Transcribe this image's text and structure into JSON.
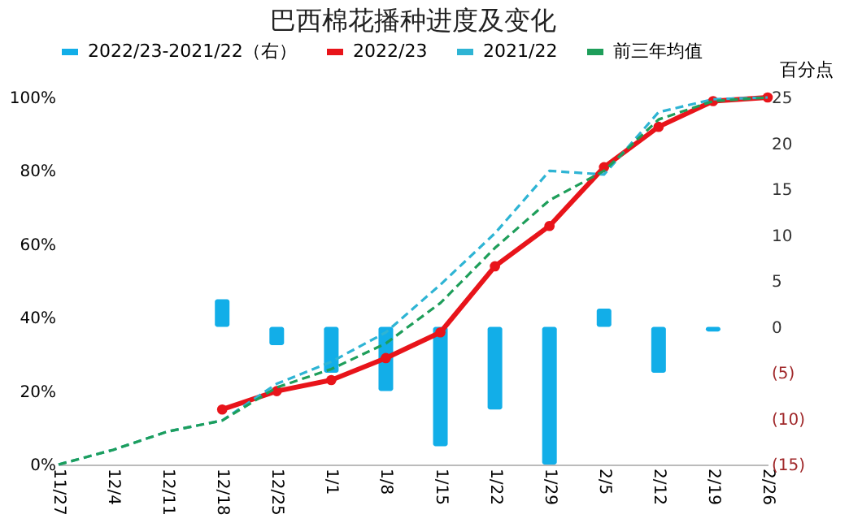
{
  "chart_data": {
    "type": "line",
    "title": "巴西棉花播种进度及变化",
    "y2label": "百分点",
    "categories": [
      "11/27",
      "12/4",
      "12/11",
      "12/18",
      "12/25",
      "1/1",
      "1/8",
      "1/15",
      "1/22",
      "1/29",
      "2/5",
      "2/12",
      "2/19",
      "2/26"
    ],
    "series": [
      {
        "name": "2022/23-2021/22（右）",
        "type": "bar",
        "axis": "y2",
        "color": "#12aee8",
        "values": [
          null,
          null,
          null,
          3,
          -2,
          -5,
          -7,
          -13,
          -9,
          -15,
          2,
          -5,
          -0.5,
          null
        ]
      },
      {
        "name": "2022/23",
        "color": "#e8141a",
        "marker": "circle",
        "line_style": "solid",
        "values": [
          null,
          null,
          null,
          15,
          20,
          23,
          29,
          36,
          54,
          65,
          81,
          92,
          99,
          100
        ]
      },
      {
        "name": "2021/22",
        "color": "#2eb4d4",
        "marker": "none",
        "line_style": "dashed",
        "values": [
          0,
          4,
          9,
          12,
          22,
          28,
          36,
          49,
          63,
          80,
          79,
          96,
          99.5,
          100
        ]
      },
      {
        "name": "前三年均值",
        "color": "#1e9e5a",
        "marker": "none",
        "line_style": "dashed",
        "values": [
          0,
          4,
          9,
          12,
          21,
          26,
          33,
          44,
          59,
          72,
          80,
          94,
          99,
          100
        ]
      }
    ],
    "ylim": [
      0,
      100
    ],
    "yticks": [
      {
        "value": 0,
        "label": "0%"
      },
      {
        "value": 20,
        "label": "20%"
      },
      {
        "value": 40,
        "label": "40%"
      },
      {
        "value": 60,
        "label": "60%"
      },
      {
        "value": 80,
        "label": "80%"
      },
      {
        "value": 100,
        "label": "100%"
      }
    ],
    "y2lim": [
      -15,
      25
    ],
    "y2ticks": [
      25,
      20,
      15,
      10,
      5,
      0,
      {
        "value": -5,
        "label": "(5)"
      },
      {
        "value": -10,
        "label": "(10)"
      },
      {
        "value": -15,
        "label": "(15)"
      }
    ],
    "grid": false,
    "legend": "top"
  }
}
